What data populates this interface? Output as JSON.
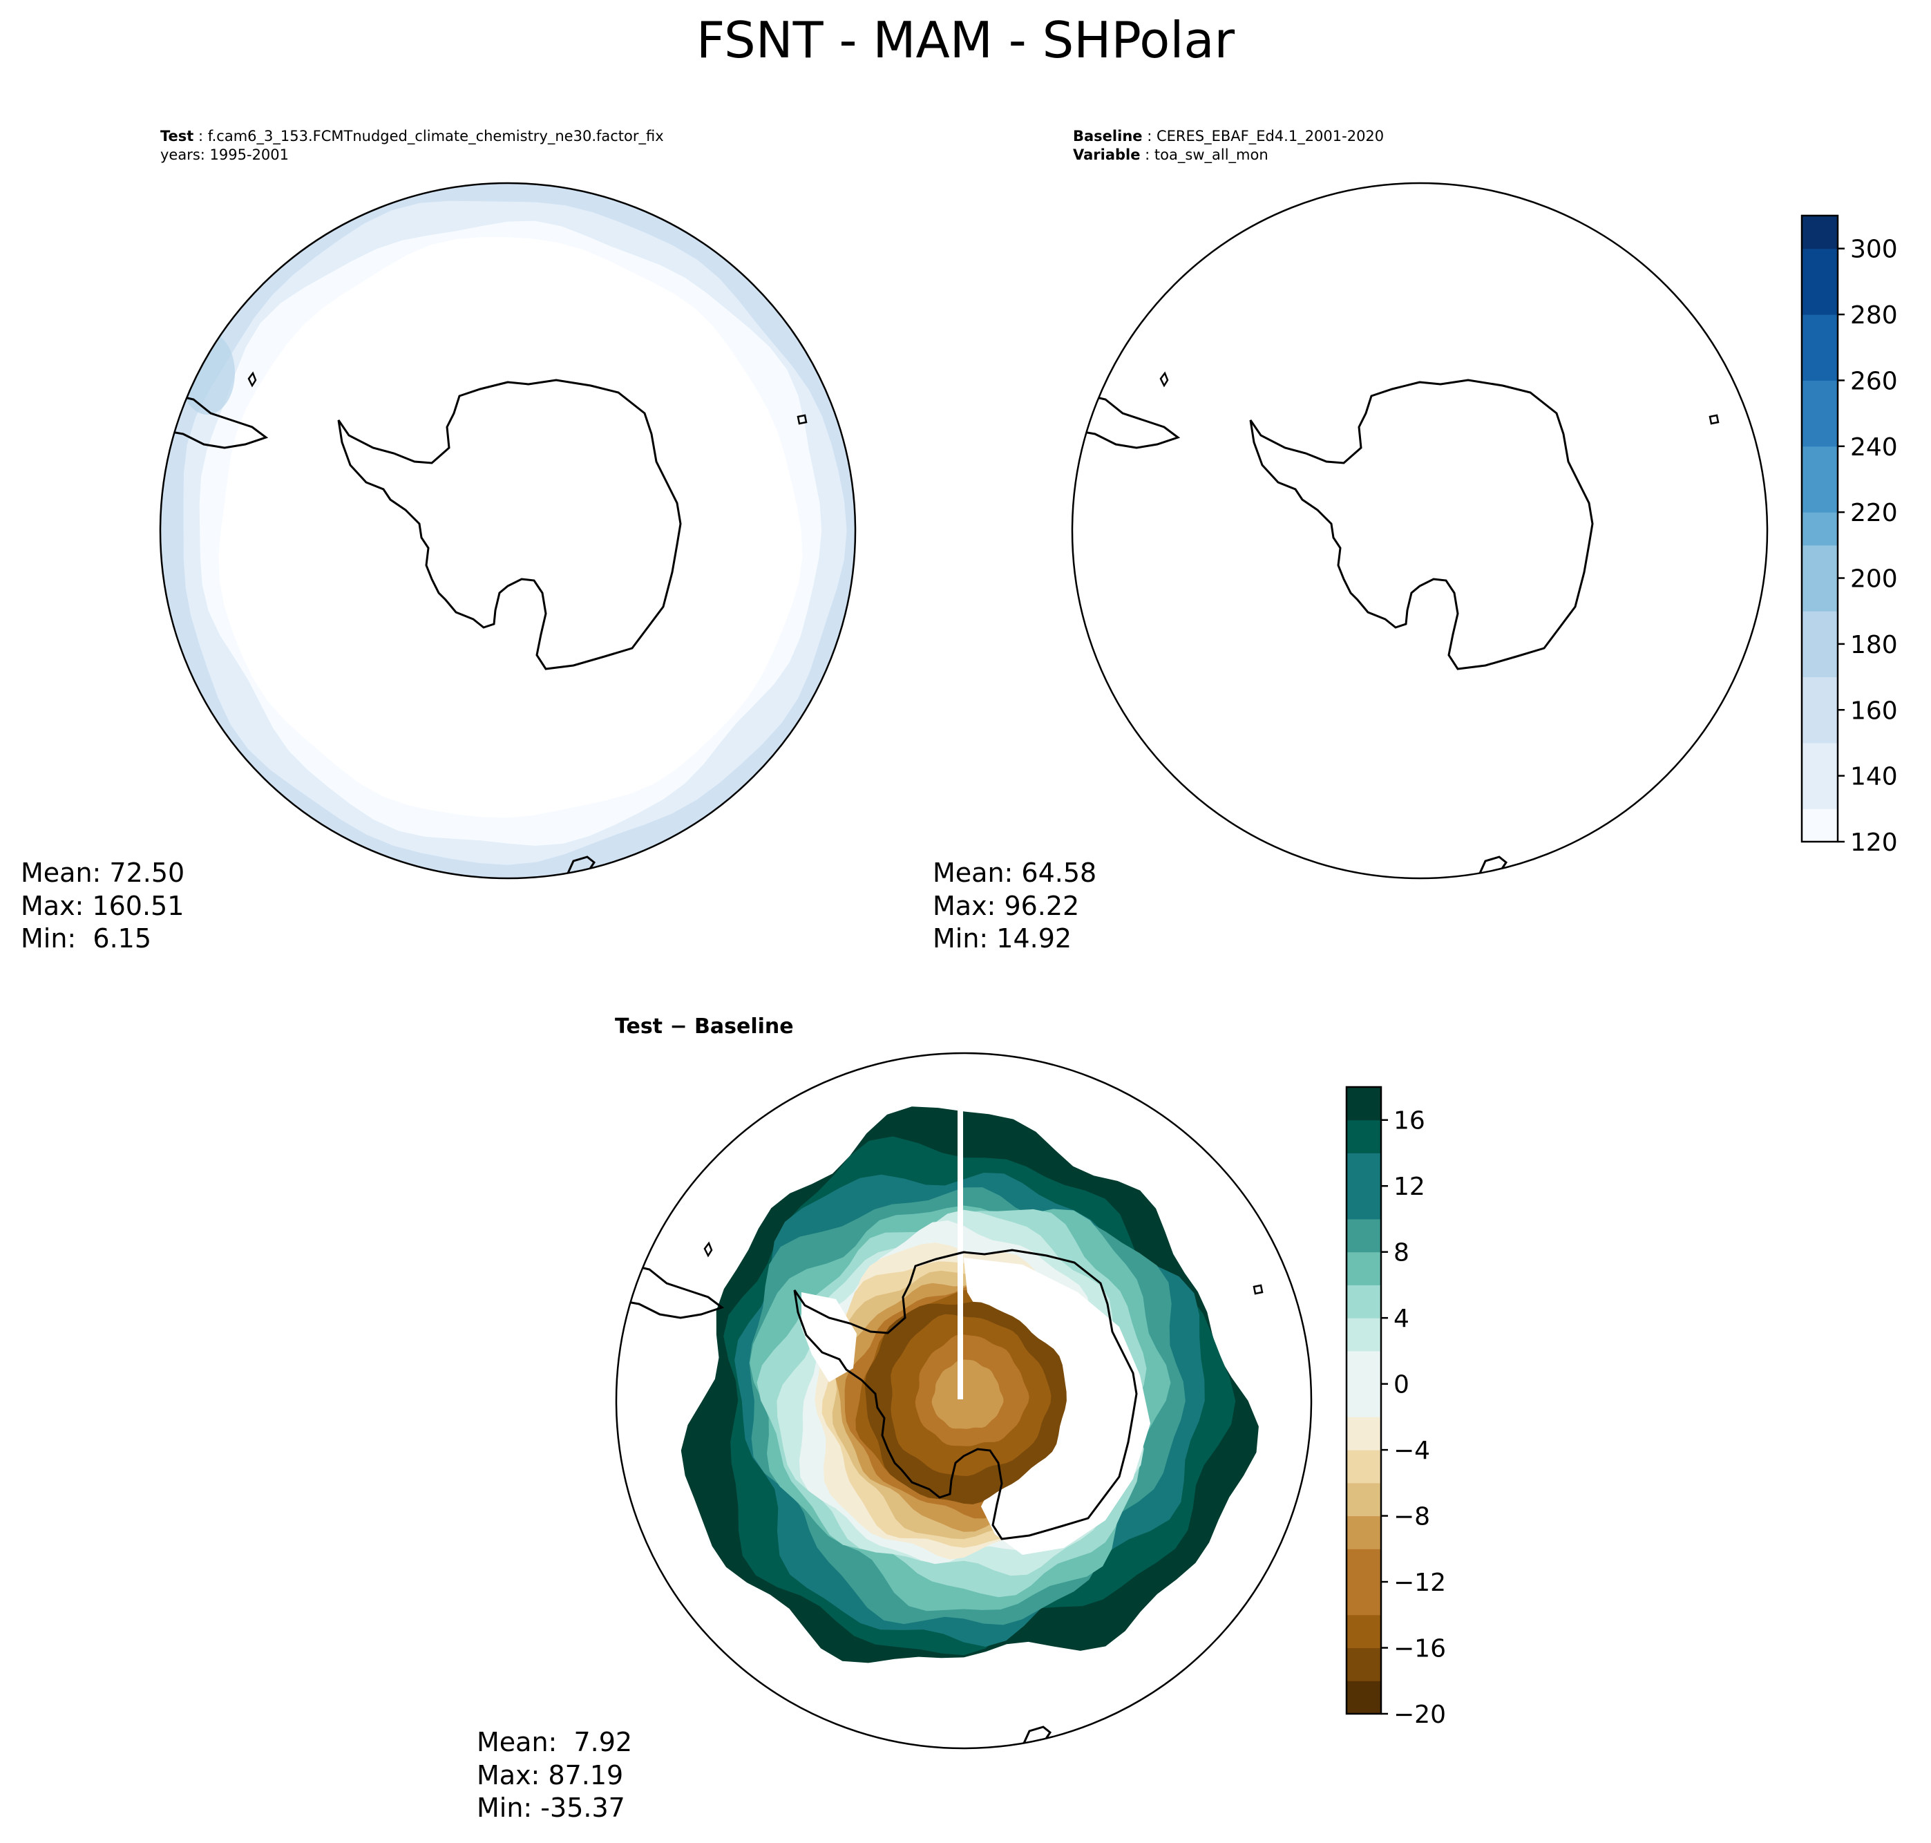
{
  "title": "FSNT - MAM - SHPolar",
  "test_panel": {
    "label": "Test",
    "name": "f.cam6_3_153.FCMTnudged_climate_chemistry_ne30.factor_fix",
    "years": "years: 1995-2001",
    "stats": {
      "mean": "Mean: 72.50",
      "max": "Max: 160.51",
      "min": "Min:  6.15"
    }
  },
  "baseline_panel": {
    "label": "Baseline",
    "name": "CERES_EBAF_Ed4.1_2001-2020",
    "var_label": "Variable",
    "variable": "toa_sw_all_mon",
    "stats": {
      "mean": "Mean: 64.58",
      "max": "Max: 96.22",
      "min": "Min: 14.92"
    }
  },
  "diff_panel": {
    "title": "Test − Baseline",
    "stats": {
      "mean": "Mean:  7.92",
      "max": "Max: 87.19",
      "min": "Min: -35.37"
    }
  },
  "colors": {
    "blues": [
      "#f7fbff",
      "#e3eef9",
      "#d0e1f2",
      "#b7d4ea",
      "#94c4df",
      "#6aaed6",
      "#4a98c9",
      "#2e7ebc",
      "#1764ab",
      "#08478d",
      "#08306b"
    ],
    "brbg": [
      "#543005",
      "#7a4a0b",
      "#9b5f12",
      "#b6772a",
      "#cc9a4f",
      "#dfbf7f",
      "#eed8a8",
      "#f5ecd6",
      "#eaf4f2",
      "#c8ebe5",
      "#9fdbd0",
      "#6cc0b2",
      "#3f9c92",
      "#17797c",
      "#015c50",
      "#003c30"
    ]
  },
  "chart_data": [
    {
      "type": "heatmap",
      "panel": "test",
      "projection": "south polar stereographic",
      "mean": 72.5,
      "max": 160.51,
      "min": 6.15,
      "colorbar": {
        "range": [
          120,
          310
        ],
        "ticks": [
          120,
          140,
          160,
          180,
          200,
          220,
          240,
          260,
          280,
          300
        ],
        "colormap": "Blues"
      }
    },
    {
      "type": "heatmap",
      "panel": "baseline",
      "projection": "south polar stereographic",
      "mean": 64.58,
      "max": 96.22,
      "min": 14.92,
      "colorbar": {
        "range": [
          120,
          310
        ],
        "ticks": [
          120,
          140,
          160,
          180,
          200,
          220,
          240,
          260,
          280,
          300
        ],
        "colormap": "Blues"
      }
    },
    {
      "type": "heatmap",
      "panel": "difference",
      "projection": "south polar stereographic",
      "mean": 7.92,
      "max": 87.19,
      "min": -35.37,
      "colorbar": {
        "range": [
          -20,
          18
        ],
        "ticks": [
          -20,
          -16,
          -12,
          -8,
          -4,
          0,
          4,
          8,
          12,
          16
        ],
        "colormap": "BrBG"
      }
    }
  ]
}
